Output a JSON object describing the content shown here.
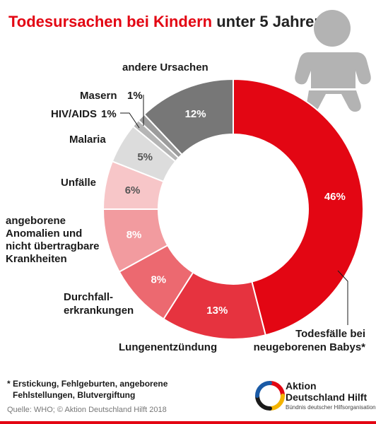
{
  "title": {
    "part1": "Todesursachen bei Kindern",
    "part2": "unter 5 Jahren"
  },
  "chart_data": {
    "type": "pie",
    "title": "Todesursachen bei Kindern unter 5 Jahren",
    "slices": [
      {
        "label": "Todesfälle bei neugeborenen Babys*",
        "value": 46,
        "display": "46%",
        "color": "#e30613",
        "text_color": "#ffffff"
      },
      {
        "label": "Lungenentzündung",
        "value": 13,
        "display": "13%",
        "color": "#e6333f",
        "text_color": "#ffffff"
      },
      {
        "label": "Durchfall-erkrankungen",
        "value": 8,
        "display": "8%",
        "color": "#ec6970",
        "text_color": "#ffffff"
      },
      {
        "label": "angeborene Anomalien und nicht übertragbare Krankheiten",
        "value": 8,
        "display": "8%",
        "color": "#f29b9f",
        "text_color": "#ffffff"
      },
      {
        "label": "Unfälle",
        "value": 6,
        "display": "6%",
        "color": "#f7c6c8",
        "text_color": "#555555"
      },
      {
        "label": "Malaria",
        "value": 5,
        "display": "5%",
        "color": "#dcdcdc",
        "text_color": "#555555"
      },
      {
        "label": "HIV/AIDS",
        "value": 1,
        "display": "1%",
        "color": "#b5b5b5",
        "text_color": "#1a1a1a"
      },
      {
        "label": "Masern",
        "value": 1,
        "display": "1%",
        "color": "#9c9c9c",
        "text_color": "#1a1a1a"
      },
      {
        "label": "andere Ursachen",
        "value": 12,
        "display": "12%",
        "color": "#777777",
        "text_color": "#ffffff"
      }
    ]
  },
  "labels": {
    "newborn_line1": "Todesfälle bei",
    "newborn_line2": "neugeborenen Babys*",
    "pneumonia": "Lungenentzündung",
    "diarrhea_line1": "Durchfall-",
    "diarrhea_line2": "erkrankungen",
    "anomalies_line1": "angeborene",
    "anomalies_line2": "Anomalien und",
    "anomalies_line3": "nicht übertragbare",
    "anomalies_line4": "Krankheiten",
    "accidents": "Unfälle",
    "malaria": "Malaria",
    "hiv": "HIV/AIDS",
    "hiv_pct": "1%",
    "measles": "Masern",
    "measles_pct": "1%",
    "other": "andere Ursachen"
  },
  "footnote": {
    "line1": "* Erstickung, Fehlgeburten, angeborene",
    "line2": "Fehlstellungen, Blutvergiftung"
  },
  "source": "Quelle: WHO; © Aktion Deutschland Hilft 2018",
  "logo": {
    "line1": "Aktion",
    "line2": "Deutschland Hilft",
    "tagline": "Bündnis deutscher Hilfsorganisationen"
  },
  "colors": {
    "accent": "#e30613",
    "baby_icon": "#b3b3b3"
  },
  "icons": {
    "baby": "baby-icon"
  }
}
